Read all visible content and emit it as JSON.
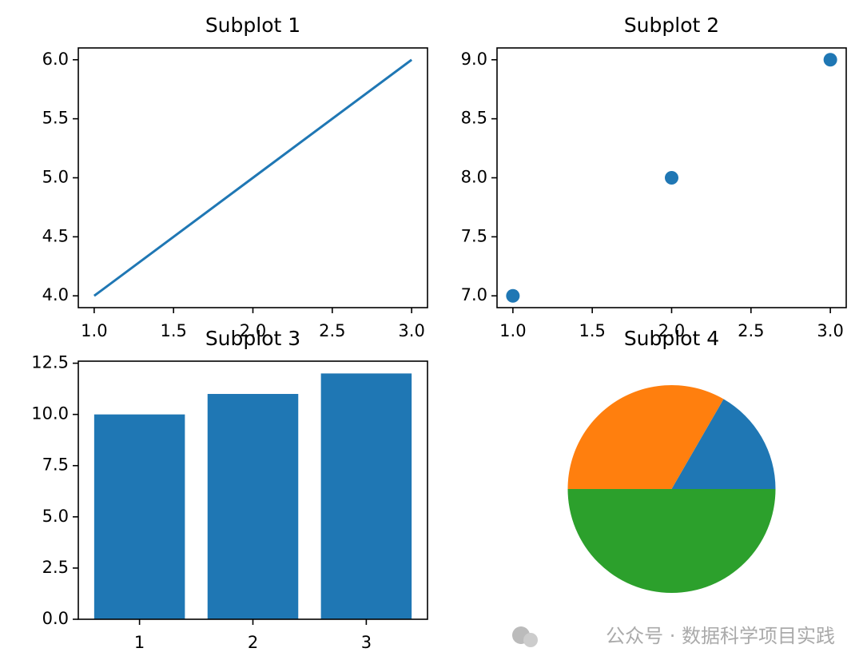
{
  "chart_data": [
    {
      "type": "line",
      "title": "Subplot 1",
      "x": [
        1,
        2,
        3
      ],
      "values": [
        4,
        5,
        6
      ],
      "color": "#1f77b4",
      "xlim": [
        0.9,
        3.1
      ],
      "ylim": [
        3.9,
        6.1
      ],
      "xticks": [
        {
          "value": 1,
          "label": "1.0"
        },
        {
          "value": 1.5,
          "label": "1.5"
        },
        {
          "value": 2,
          "label": "2.0"
        },
        {
          "value": 2.5,
          "label": "2.5"
        },
        {
          "value": 3,
          "label": "3.0"
        }
      ],
      "yticks": [
        {
          "value": 4,
          "label": "4.0"
        },
        {
          "value": 4.5,
          "label": "4.5"
        },
        {
          "value": 5,
          "label": "5.0"
        },
        {
          "value": 5.5,
          "label": "5.5"
        },
        {
          "value": 6,
          "label": "6.0"
        }
      ]
    },
    {
      "type": "scatter",
      "title": "Subplot 2",
      "x": [
        1,
        2,
        3
      ],
      "values": [
        7,
        8,
        9
      ],
      "color": "#1f77b4",
      "xlim": [
        0.9,
        3.1
      ],
      "ylim": [
        6.9,
        9.1
      ],
      "xticks": [
        {
          "value": 1,
          "label": "1.0"
        },
        {
          "value": 1.5,
          "label": "1.5"
        },
        {
          "value": 2,
          "label": "2.0"
        },
        {
          "value": 2.5,
          "label": "2.5"
        },
        {
          "value": 3,
          "label": "3.0"
        }
      ],
      "yticks": [
        {
          "value": 7,
          "label": "7.0"
        },
        {
          "value": 7.5,
          "label": "7.5"
        },
        {
          "value": 8,
          "label": "8.0"
        },
        {
          "value": 8.5,
          "label": "8.5"
        },
        {
          "value": 9,
          "label": "9.0"
        }
      ]
    },
    {
      "type": "bar",
      "title": "Subplot 3",
      "x": [
        1,
        2,
        3
      ],
      "values": [
        10,
        11,
        12
      ],
      "color": "#1f77b4",
      "xlim": [
        0.46,
        3.54
      ],
      "ylim": [
        0,
        12.6
      ],
      "xticks": [
        1,
        2,
        3
      ],
      "yticks": [
        {
          "value": 0,
          "label": "0.0"
        },
        {
          "value": 2.5,
          "label": "2.5"
        },
        {
          "value": 5,
          "label": "5.0"
        },
        {
          "value": 7.5,
          "label": "7.5"
        },
        {
          "value": 10,
          "label": "10.0"
        },
        {
          "value": 12.5,
          "label": "12.5"
        }
      ]
    },
    {
      "type": "pie",
      "title": "Subplot 4",
      "values": [
        1,
        2,
        3
      ],
      "colors": [
        "#1f77b4",
        "#ff7f0e",
        "#2ca02c"
      ]
    }
  ],
  "watermark": "公众号 · 数据科学项目实践"
}
